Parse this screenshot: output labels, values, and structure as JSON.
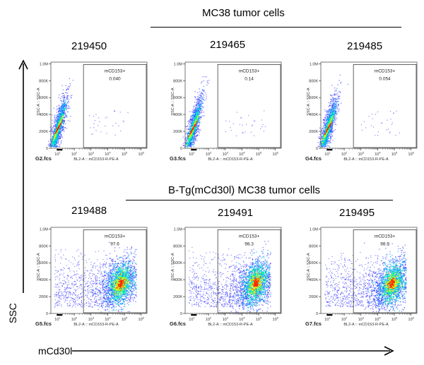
{
  "groups": [
    {
      "title": "MC38 tumor cells",
      "panels": [
        {
          "sample_id": "219450",
          "file": "G2.fcs",
          "gate_label": "mCD153+",
          "gate_percent": "0.040"
        },
        {
          "sample_id": "219465",
          "file": "G3.fcs",
          "gate_label": "mCD153+",
          "gate_percent": "0.14"
        },
        {
          "sample_id": "219485",
          "file": "G4.fcs",
          "gate_label": "mCD153+",
          "gate_percent": "0.054"
        }
      ]
    },
    {
      "title": "B-Tg(mCd30l) MC38 tumor cells",
      "panels": [
        {
          "sample_id": "219488",
          "file": "G5.fcs",
          "gate_label": "mCD153+",
          "gate_percent": "97.6"
        },
        {
          "sample_id": "219491",
          "file": "G6.fcs",
          "gate_label": "mCD153+",
          "gate_percent": "98.3"
        },
        {
          "sample_id": "219495",
          "file": "G7.fcs",
          "gate_label": "mCD153+",
          "gate_percent": "98.9"
        }
      ]
    }
  ],
  "axis_titles": {
    "y": "SSC",
    "x": "mCd30l"
  },
  "chart_data": {
    "type": "scatter",
    "plot_kind": "flow cytometry density dot plot",
    "x_axis": {
      "label": "BL2-A :: mCD153-R-PE-A",
      "scale": "log",
      "tick_labels": [
        "10^1",
        "10^2",
        "10^3",
        "10^4",
        "10^5",
        "10^6"
      ]
    },
    "y_axis": {
      "label": "SSC-A :: SSC-A",
      "scale": "linear",
      "range": [
        0,
        1000000
      ],
      "tick_labels": [
        "0",
        "200K",
        "400K",
        "600K",
        "800K",
        "1.0M"
      ]
    },
    "gate": {
      "name": "mCD153+",
      "x_range_log10": [
        2.55,
        6.3
      ],
      "y_range": [
        0,
        1000000
      ]
    },
    "density_colors": [
      "#0000ff",
      "#00aaff",
      "#00ff88",
      "#ffff00",
      "#ff0000"
    ],
    "series": [
      {
        "file": "G2.fcs",
        "percent_gated": 0.04,
        "population_center": {
          "log10_x": 1.0,
          "ssc": 240000
        }
      },
      {
        "file": "G3.fcs",
        "percent_gated": 0.14,
        "population_center": {
          "log10_x": 1.05,
          "ssc": 240000
        }
      },
      {
        "file": "G4.fcs",
        "percent_gated": 0.054,
        "population_center": {
          "log10_x": 1.0,
          "ssc": 240000
        }
      },
      {
        "file": "G5.fcs",
        "percent_gated": 97.6,
        "population_center": {
          "log10_x": 4.75,
          "ssc": 360000
        }
      },
      {
        "file": "G6.fcs",
        "percent_gated": 98.3,
        "population_center": {
          "log10_x": 4.8,
          "ssc": 360000
        }
      },
      {
        "file": "G7.fcs",
        "percent_gated": 98.9,
        "population_center": {
          "log10_x": 4.85,
          "ssc": 360000
        }
      }
    ]
  }
}
